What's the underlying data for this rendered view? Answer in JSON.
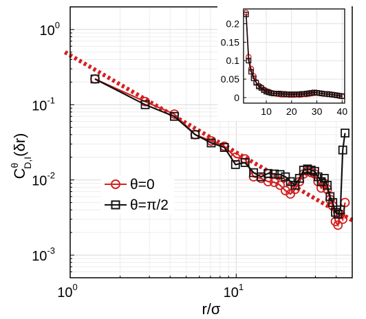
{
  "chart_data": [
    {
      "type": "line",
      "xscale": "log",
      "yscale": "log",
      "xlim": [
        1,
        50
      ],
      "ylim": [
        0.0005,
        2
      ],
      "grid": true,
      "xlabel": "r/σ",
      "ylabel_main": "C",
      "ylabel_sup": "θ",
      "ylabel_sub": "D,I",
      "ylabel_tail": "(δr)",
      "x_ticks": [
        {
          "value": 1,
          "base": "10",
          "exp": "0"
        },
        {
          "value": 10,
          "base": "10",
          "exp": "1"
        }
      ],
      "y_ticks": [
        {
          "value": 1,
          "base": "10",
          "exp": "0"
        },
        {
          "value": 0.1,
          "base": "10",
          "exp": "-1"
        },
        {
          "value": 0.01,
          "base": "10",
          "exp": "-2"
        },
        {
          "value": 0.001,
          "base": "10",
          "exp": "-3"
        }
      ],
      "legend_position": "center-left",
      "series": [
        {
          "name": "θ=0",
          "marker": "circle",
          "color": "#d42020",
          "x": [
            1.41,
            2.83,
            4.24,
            5.66,
            7.07,
            8.49,
            9.9,
            11.31,
            12.73,
            14.14,
            15.56,
            16.97,
            18.38,
            19.8,
            21.21,
            22.63,
            24.04,
            25.46,
            26.87,
            28.28,
            29.7,
            31.11,
            32.53,
            33.94,
            35.36,
            36.77,
            38.18,
            39.6,
            41.01,
            42.43,
            43.84,
            45.25
          ],
          "y": [
            0.22,
            0.11,
            0.075,
            0.04,
            0.033,
            0.028,
            0.02,
            0.019,
            0.011,
            0.0105,
            0.0095,
            0.0093,
            0.0085,
            0.0072,
            0.0065,
            0.0075,
            0.0095,
            0.012,
            0.013,
            0.0125,
            0.012,
            0.0095,
            0.0078,
            0.009,
            0.0075,
            0.0055,
            0.0045,
            0.0028,
            0.0025,
            0.0035,
            0.003,
            0.005
          ]
        },
        {
          "name": "θ=π/2",
          "marker": "square",
          "color": "#111111",
          "x": [
            1.41,
            2.83,
            4.24,
            5.66,
            7.07,
            8.49,
            9.9,
            11.31,
            12.73,
            14.14,
            15.56,
            16.97,
            18.38,
            19.8,
            21.21,
            22.63,
            24.04,
            25.46,
            26.87,
            28.28,
            29.7,
            31.11,
            32.53,
            33.94,
            35.36,
            36.77,
            38.18,
            39.6,
            41.01,
            42.43,
            43.84,
            45.25
          ],
          "y": [
            0.22,
            0.1,
            0.07,
            0.04,
            0.031,
            0.027,
            0.016,
            0.017,
            0.0125,
            0.011,
            0.0122,
            0.012,
            0.0118,
            0.011,
            0.0095,
            0.0085,
            0.0105,
            0.0135,
            0.014,
            0.0135,
            0.013,
            0.011,
            0.0095,
            0.0105,
            0.0085,
            0.006,
            0.005,
            0.0037,
            0.0035,
            0.004,
            0.025,
            0.042
          ]
        }
      ],
      "fit_line": {
        "color": "#d42020",
        "style": "dotted",
        "from": [
          0.93,
          0.5
        ],
        "to": [
          50,
          0.0029
        ]
      }
    },
    {
      "type": "line",
      "inset": true,
      "xscale": "linear",
      "yscale": "linear",
      "xlim": [
        1,
        41
      ],
      "ylim": [
        -0.015,
        0.24
      ],
      "grid": true,
      "x_ticks": [
        "10",
        "20",
        "30",
        "40"
      ],
      "x_tick_values": [
        10,
        20,
        30,
        40
      ],
      "y_ticks": [
        "0",
        "0.05",
        "0.1",
        "0.15",
        "0.2"
      ],
      "y_tick_values": [
        0,
        0.05,
        0.1,
        0.15,
        0.2
      ],
      "series": [
        {
          "name": "θ=0",
          "marker": "circle",
          "color": "#d42020",
          "x": [
            2,
            3,
            4,
            5,
            6,
            7,
            8,
            9,
            10,
            11,
            12,
            13,
            14,
            15,
            16,
            17,
            18,
            19,
            20,
            21,
            22,
            23,
            24,
            25,
            26,
            27,
            28,
            29,
            30,
            31,
            32,
            33,
            34,
            35,
            36,
            37,
            38,
            39,
            40
          ],
          "y": [
            0.23,
            0.11,
            0.078,
            0.058,
            0.042,
            0.032,
            0.028,
            0.022,
            0.018,
            0.016,
            0.013,
            0.011,
            0.01,
            0.009,
            0.008,
            0.008,
            0.008,
            0.007,
            0.007,
            0.007,
            0.008,
            0.007,
            0.008,
            0.009,
            0.009,
            0.01,
            0.011,
            0.012,
            0.013,
            0.012,
            0.011,
            0.01,
            0.009,
            0.009,
            0.008,
            0.007,
            0.006,
            0.004,
            0.003
          ]
        },
        {
          "name": "θ=π/2",
          "marker": "square",
          "color": "#111111",
          "x": [
            2,
            3,
            4,
            5,
            6,
            7,
            8,
            9,
            10,
            11,
            12,
            13,
            14,
            15,
            16,
            17,
            18,
            19,
            20,
            21,
            22,
            23,
            24,
            25,
            26,
            27,
            28,
            29,
            30,
            31,
            32,
            33,
            34,
            35,
            36,
            37,
            38,
            39,
            40
          ],
          "y": [
            0.225,
            0.1,
            0.07,
            0.052,
            0.04,
            0.03,
            0.026,
            0.02,
            0.016,
            0.014,
            0.012,
            0.011,
            0.011,
            0.011,
            0.01,
            0.01,
            0.009,
            0.009,
            0.009,
            0.009,
            0.009,
            0.009,
            0.01,
            0.01,
            0.011,
            0.012,
            0.013,
            0.014,
            0.013,
            0.012,
            0.011,
            0.01,
            0.01,
            0.009,
            0.008,
            0.007,
            0.006,
            0.005,
            0.004
          ]
        }
      ]
    }
  ]
}
